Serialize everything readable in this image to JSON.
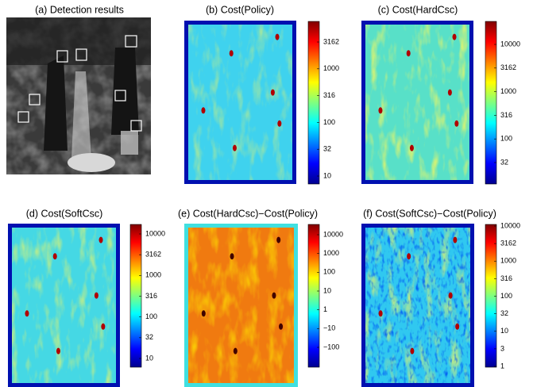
{
  "panels": [
    {
      "title": "(a) Detection results"
    },
    {
      "title": "(b) Cost(Policy)",
      "colorbar_ticks": [
        "3162",
        "1000",
        "316",
        "100",
        "32",
        "10"
      ]
    },
    {
      "title": "(c) Cost(HardCsc)",
      "colorbar_ticks": [
        "10000",
        "3162",
        "1000",
        "316",
        "100",
        "32"
      ]
    },
    {
      "title": "(d) Cost(SoftCsc)",
      "colorbar_ticks": [
        "10000",
        "3162",
        "1000",
        "316",
        "100",
        "32",
        "10"
      ]
    },
    {
      "title": "(e) Cost(HardCsc)−Cost(Policy)",
      "colorbar_ticks": [
        "10000",
        "1000",
        "100",
        "10",
        "1",
        "−10",
        "−100"
      ]
    },
    {
      "title": "(f) Cost(SoftCsc)−Cost(Policy)",
      "colorbar_ticks": [
        "10000",
        "3162",
        "1000",
        "316",
        "100",
        "32",
        "10",
        "3",
        "1"
      ]
    }
  ]
}
